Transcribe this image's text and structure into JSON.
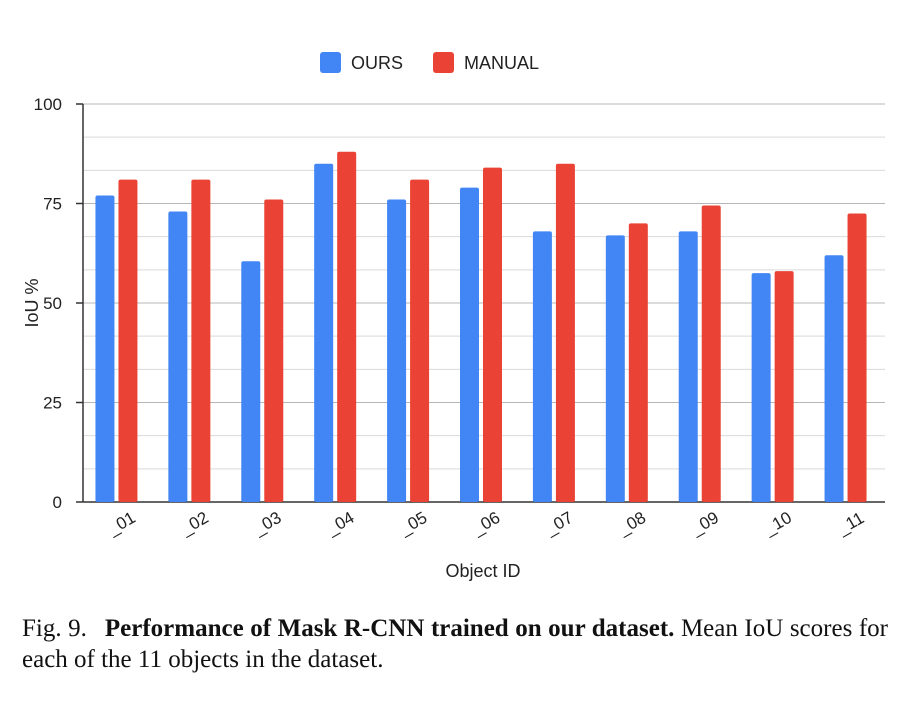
{
  "chart_data": {
    "type": "bar",
    "categories": [
      "_01",
      "_02",
      "_03",
      "_04",
      "_05",
      "_06",
      "_07",
      "_08",
      "_09",
      "_10",
      "_11"
    ],
    "series": [
      {
        "name": "OURS",
        "color": "#4285f4",
        "values": [
          77,
          73,
          60.5,
          85,
          76,
          79,
          68,
          67,
          68,
          57.5,
          62
        ]
      },
      {
        "name": "MANUAL",
        "color": "#ea4335",
        "values": [
          81,
          81,
          76,
          88,
          81,
          84,
          85,
          70,
          74.5,
          58,
          72.5
        ]
      }
    ],
    "xlabel": "Object ID",
    "ylabel": "IoU %",
    "ylim": [
      0,
      100
    ],
    "yticks": [
      0,
      25,
      50,
      75,
      100
    ],
    "grid": true,
    "legend": "top-center"
  },
  "caption": {
    "label": "Fig. 9.",
    "title": "Performance of Mask R-CNN trained on our dataset.",
    "text": "Mean IoU scores for each of the 11 objects in the dataset."
  }
}
